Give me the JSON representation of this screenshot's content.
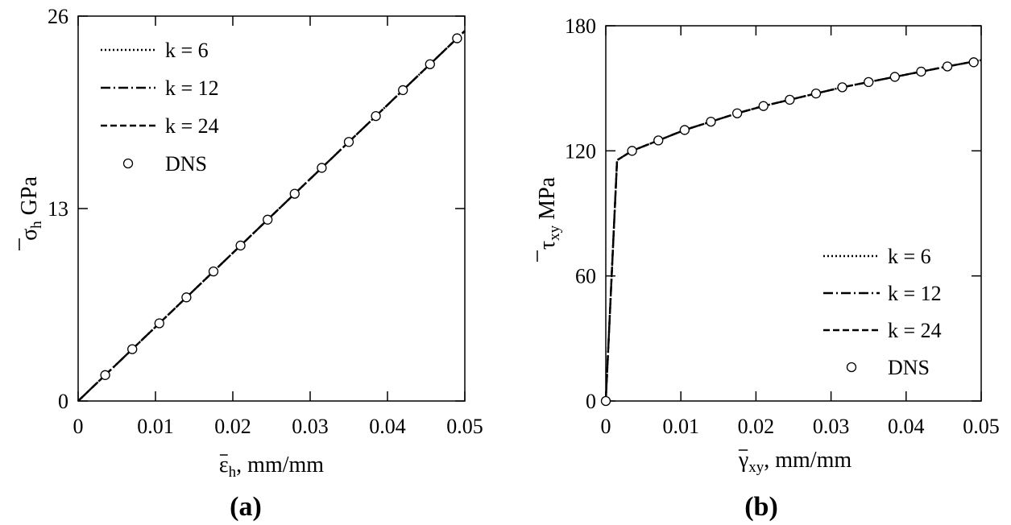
{
  "chart_data": [
    {
      "type": "line",
      "panel_label": "(a)",
      "xlabel_base": "ε",
      "xlabel_sub": "h",
      "xlabel_unit": ", mm/mm",
      "ylabel_base": "σ",
      "ylabel_sub": "h",
      "ylabel_unit": " GPa",
      "xlim": [
        0,
        0.05
      ],
      "ylim": [
        0,
        26
      ],
      "xticks": [
        0,
        0.01,
        0.02,
        0.03,
        0.04,
        0.05
      ],
      "xtick_labels": [
        "0",
        "0.01",
        "0.02",
        "0.03",
        "0.04",
        "0.05"
      ],
      "yticks": [
        0,
        13,
        26
      ],
      "ytick_labels": [
        "0",
        "13",
        "26"
      ],
      "legend_position": "top-left",
      "series": [
        {
          "name": "k = 6",
          "style": "dotted",
          "x": [
            0,
            0.05
          ],
          "y": [
            0,
            25.0
          ]
        },
        {
          "name": "k = 12",
          "style": "dashdot",
          "x": [
            0,
            0.05
          ],
          "y": [
            0,
            25.0
          ]
        },
        {
          "name": "k = 24",
          "style": "dashed",
          "x": [
            0,
            0.05
          ],
          "y": [
            0,
            25.0
          ]
        },
        {
          "name": "DNS",
          "style": "marker",
          "x": [
            0.0035,
            0.007,
            0.0105,
            0.014,
            0.0175,
            0.021,
            0.0245,
            0.028,
            0.0315,
            0.035,
            0.0385,
            0.042,
            0.0455,
            0.049
          ],
          "y": [
            1.75,
            3.5,
            5.25,
            7.0,
            8.75,
            10.5,
            12.25,
            14.0,
            15.75,
            17.5,
            19.25,
            21.0,
            22.75,
            24.5
          ]
        }
      ]
    },
    {
      "type": "line",
      "panel_label": "(b)",
      "xlabel_base": "γ",
      "xlabel_sub": "xy",
      "xlabel_unit": ", mm/mm",
      "ylabel_base": "τ",
      "ylabel_sub": "xy",
      "ylabel_unit": " MPa",
      "xlim": [
        0,
        0.05
      ],
      "ylim": [
        0,
        180
      ],
      "xticks": [
        0,
        0.01,
        0.02,
        0.03,
        0.04,
        0.05
      ],
      "xtick_labels": [
        "0",
        "0.01",
        "0.02",
        "0.03",
        "0.04",
        "0.05"
      ],
      "yticks": [
        0,
        60,
        120,
        180
      ],
      "ytick_labels": [
        "0",
        "60",
        "120",
        "180"
      ],
      "legend_position": "bottom-right",
      "series": [
        {
          "name": "k = 6",
          "style": "dotted",
          "x": [
            0,
            0.0015,
            0.0035,
            0.007,
            0.0105,
            0.014,
            0.0175,
            0.021,
            0.0245,
            0.028,
            0.0315,
            0.035,
            0.0385,
            0.042,
            0.0455,
            0.05
          ],
          "y": [
            0,
            115.5,
            120,
            125,
            130,
            134,
            138,
            141.5,
            144.5,
            147.5,
            150.5,
            153,
            155.5,
            158,
            160.5,
            163.5
          ]
        },
        {
          "name": "k = 12",
          "style": "dashdot",
          "x": [
            0,
            0.0015,
            0.0035,
            0.007,
            0.0105,
            0.014,
            0.0175,
            0.021,
            0.0245,
            0.028,
            0.0315,
            0.035,
            0.0385,
            0.042,
            0.0455,
            0.05
          ],
          "y": [
            0,
            115.5,
            120,
            125,
            130,
            134,
            138,
            141.5,
            144.5,
            147.5,
            150.5,
            153,
            155.5,
            158,
            160.5,
            163.5
          ]
        },
        {
          "name": "k = 24",
          "style": "dashed",
          "x": [
            0,
            0.0015,
            0.0035,
            0.007,
            0.0105,
            0.014,
            0.0175,
            0.021,
            0.0245,
            0.028,
            0.0315,
            0.035,
            0.0385,
            0.042,
            0.0455,
            0.05
          ],
          "y": [
            0,
            115.5,
            120,
            125,
            130,
            134,
            138,
            141.5,
            144.5,
            147.5,
            150.5,
            153,
            155.5,
            158,
            160.5,
            163.5
          ]
        },
        {
          "name": "DNS",
          "style": "marker",
          "x": [
            0,
            0.0035,
            0.007,
            0.0105,
            0.014,
            0.0175,
            0.021,
            0.0245,
            0.028,
            0.0315,
            0.035,
            0.0385,
            0.042,
            0.0455,
            0.049
          ],
          "y": [
            0,
            120,
            125,
            130,
            134,
            138,
            141.5,
            144.5,
            147.5,
            150.5,
            153,
            155.5,
            158,
            160.5,
            162.5
          ]
        }
      ]
    }
  ]
}
